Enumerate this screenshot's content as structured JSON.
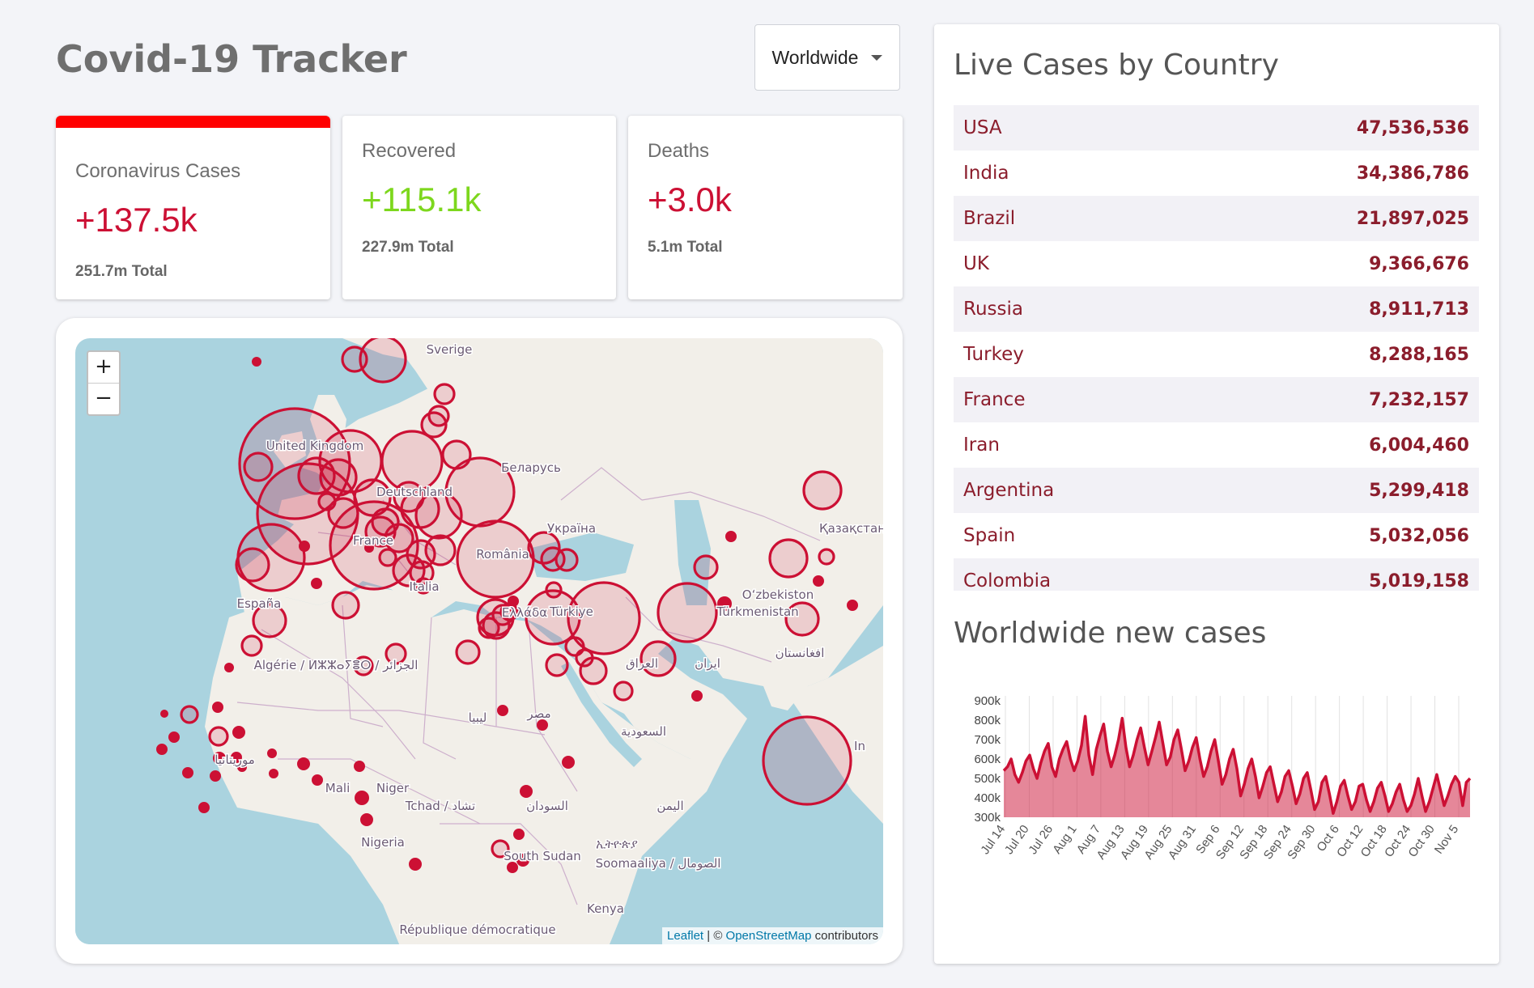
{
  "header": {
    "title": "Covid-19 Tracker",
    "country_select": "Worldwide"
  },
  "stats": [
    {
      "label": "Coronavirus Cases",
      "value": "+137.5k",
      "total": "251.7m Total",
      "color": "#cc1034",
      "selected": true
    },
    {
      "label": "Recovered",
      "value": "+115.1k",
      "total": "227.9m Total",
      "color": "#7dd71d",
      "selected": false
    },
    {
      "label": "Deaths",
      "value": "+3.0k",
      "total": "5.1m Total",
      "color": "#cc1034",
      "selected": false
    }
  ],
  "map": {
    "zoom_in": "+",
    "zoom_out": "−",
    "attribution": {
      "leaflet": "Leaflet",
      "separator": " | © ",
      "osm": "OpenStreetMap",
      "suffix": " contributors"
    },
    "labels": [
      "Sverige",
      "United Kingdom",
      "Беларусь",
      "Deutschland",
      "Україна",
      "France",
      "România",
      "Қазақстан",
      "España",
      "Italia",
      "Oʻzbekiston",
      "Türkiye",
      "Türkmenistan",
      "Ελλάδα",
      "Algérie / ⵍⵣⵣⴰⵢⴻⵔ / الجزائر",
      "العراق",
      "ایران",
      "افغانستان",
      "ليبيا",
      "مصر",
      "السعودية",
      "موريتانيا",
      "Mali",
      "Niger",
      "Tchad / تشاد",
      "السودان",
      "Nigeria",
      "South Sudan",
      "ኢትዮጵያ",
      "اليمن",
      "Soomaaliya / الصومال",
      "Kenya",
      "République démocratique",
      "In"
    ],
    "marker_color": "#cc1034"
  },
  "live_cases": {
    "title": "Live Cases by Country",
    "rows": [
      {
        "country": "USA",
        "cases": "47,536,536"
      },
      {
        "country": "India",
        "cases": "34,386,786"
      },
      {
        "country": "Brazil",
        "cases": "21,897,025"
      },
      {
        "country": "UK",
        "cases": "9,366,676"
      },
      {
        "country": "Russia",
        "cases": "8,911,713"
      },
      {
        "country": "Turkey",
        "cases": "8,288,165"
      },
      {
        "country": "France",
        "cases": "7,232,157"
      },
      {
        "country": "Iran",
        "cases": "6,004,460"
      },
      {
        "country": "Argentina",
        "cases": "5,299,418"
      },
      {
        "country": "Spain",
        "cases": "5,032,056"
      },
      {
        "country": "Colombia",
        "cases": "5,019,158"
      }
    ]
  },
  "chart_title": "Worldwide new cases",
  "chart_data": {
    "type": "area",
    "title": "Worldwide new cases",
    "xlabel": "",
    "ylabel": "",
    "ylim": [
      300000,
      900000
    ],
    "yticks": [
      "300k",
      "400k",
      "500k",
      "600k",
      "700k",
      "800k",
      "900k"
    ],
    "x_ticks": [
      "Jul 14",
      "Jul 20",
      "Jul 26",
      "Aug 1",
      "Aug 7",
      "Aug 13",
      "Aug 19",
      "Aug 25",
      "Aug 31",
      "Sep 6",
      "Sep 12",
      "Sep 18",
      "Sep 24",
      "Sep 30",
      "Oct 6",
      "Oct 12",
      "Oct 18",
      "Oct 24",
      "Oct 30",
      "Nov 5"
    ],
    "color": "#cc1034",
    "fill": "rgba(204,16,52,0.5)",
    "series": [
      {
        "values": [
          540000,
          560000,
          600000,
          520000,
          480000,
          530000,
          590000,
          620000,
          550000,
          500000,
          580000,
          640000,
          680000,
          560000,
          510000,
          600000,
          650000,
          690000,
          600000,
          540000,
          590000,
          670000,
          820000,
          620000,
          520000,
          650000,
          720000,
          780000,
          640000,
          560000,
          620000,
          700000,
          810000,
          660000,
          560000,
          620000,
          700000,
          760000,
          660000,
          570000,
          640000,
          710000,
          790000,
          680000,
          570000,
          610000,
          700000,
          750000,
          650000,
          540000,
          590000,
          660000,
          710000,
          600000,
          510000,
          560000,
          640000,
          700000,
          590000,
          470000,
          520000,
          600000,
          650000,
          550000,
          410000,
          470000,
          550000,
          600000,
          510000,
          400000,
          460000,
          530000,
          560000,
          470000,
          380000,
          430000,
          510000,
          540000,
          460000,
          370000,
          420000,
          500000,
          530000,
          440000,
          340000,
          380000,
          480000,
          510000,
          420000,
          320000,
          380000,
          460000,
          490000,
          410000,
          340000,
          380000,
          460000,
          470000,
          390000,
          330000,
          380000,
          450000,
          480000,
          410000,
          330000,
          370000,
          430000,
          470000,
          390000,
          330000,
          360000,
          420000,
          500000,
          410000,
          330000,
          380000,
          450000,
          520000,
          440000,
          360000,
          410000,
          470000,
          510000,
          480000,
          360000,
          480000,
          500000
        ]
      }
    ]
  }
}
